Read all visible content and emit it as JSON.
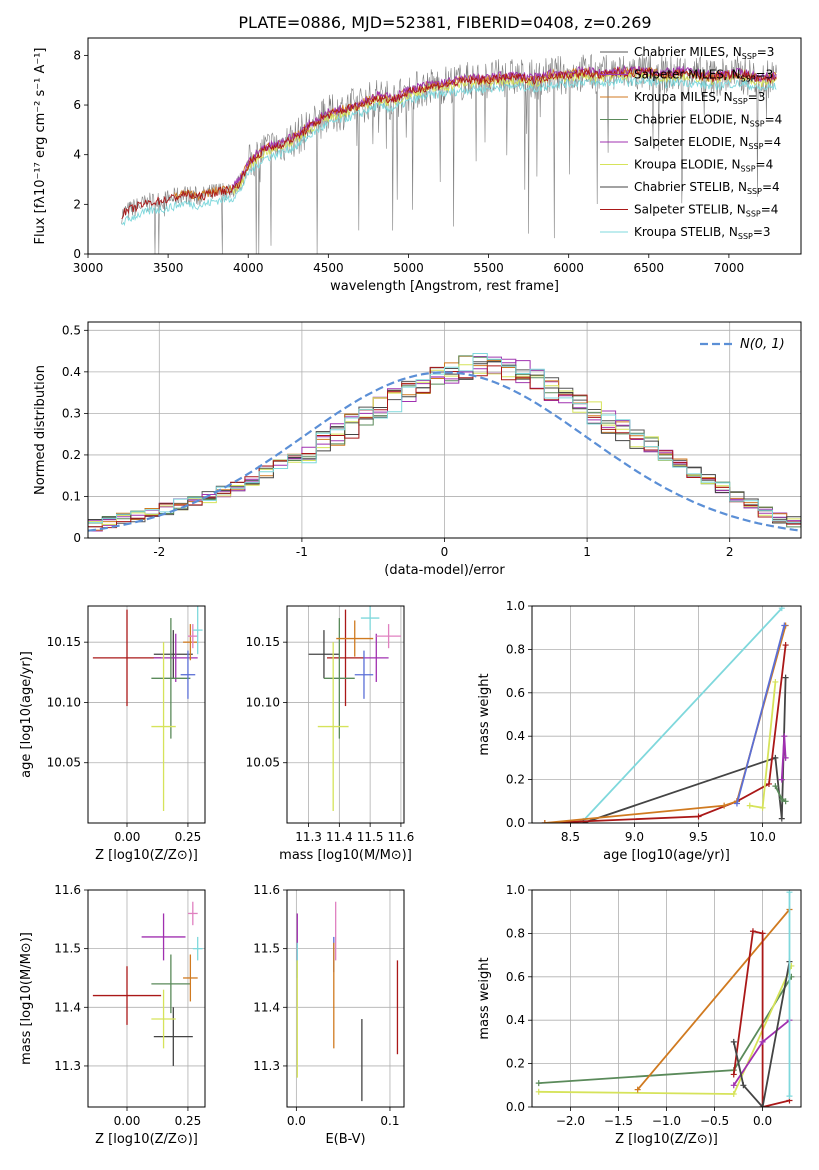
{
  "figure": {
    "title": "PLATE=0886, MJD=52381, FIBERID=0408, z=0.269"
  },
  "colors": {
    "series": [
      "#555555",
      "#a13ab0",
      "#d07a20",
      "#5a8a5a",
      "#a030b0",
      "#d6e35a",
      "#444444",
      "#aa1818",
      "#7fd8dc"
    ],
    "spectrum_data": "#808080",
    "normal_curve": "#5b8fd6",
    "grid": "#b0b0b0"
  },
  "chart_data": [
    {
      "type": "line",
      "id": "spectrum",
      "title": "PLATE=0886, MJD=52381, FIBERID=0408, z=0.269",
      "xlabel": "wavelength [Angstrom, rest frame]",
      "ylabel": "Flux [fλ10⁻¹⁷ erg cm⁻² s⁻¹ A⁻¹]",
      "xlim": [
        3000,
        7450
      ],
      "ylim": [
        0,
        8.7
      ],
      "xticks": [
        3000,
        3500,
        4000,
        4500,
        5000,
        5500,
        6000,
        6500,
        7000
      ],
      "yticks": [
        0,
        2,
        4,
        6,
        8
      ],
      "grid": false,
      "legend_position": "top-right",
      "continuum_x": [
        3210,
        3300,
        3400,
        3500,
        3600,
        3700,
        3800,
        3900,
        3950,
        4000,
        4100,
        4200,
        4300,
        4400,
        4500,
        4600,
        4700,
        4800,
        4900,
        5000,
        5100,
        5200,
        5300,
        5400,
        5500,
        5600,
        5700,
        5800,
        5900,
        6000,
        6100,
        6200,
        6300,
        6400,
        6500,
        6600,
        6700,
        6800,
        6900,
        7000,
        7100,
        7200,
        7300
      ],
      "continuum_y": [
        1.6,
        1.9,
        2.1,
        2.2,
        2.4,
        2.3,
        2.5,
        2.6,
        2.9,
        3.6,
        4.2,
        4.4,
        4.7,
        5.2,
        5.6,
        5.8,
        6.0,
        6.3,
        6.2,
        6.5,
        6.7,
        6.8,
        6.9,
        7.0,
        7.0,
        7.1,
        7.1,
        7.0,
        7.2,
        7.2,
        7.3,
        7.2,
        7.3,
        7.3,
        7.3,
        7.2,
        7.3,
        7.2,
        7.1,
        7.2,
        7.2,
        7.0,
        7.1
      ],
      "legend": [
        {
          "label": "Chabrier MILES, NSSP=3",
          "color": "#555555"
        },
        {
          "label": "Salpeter MILES, NSSP=3",
          "color": "#a13ab0"
        },
        {
          "label": "Kroupa MILES, NSSP=3",
          "color": "#d07a20"
        },
        {
          "label": "Chabrier ELODIE, NSSP=4",
          "color": "#5a8a5a"
        },
        {
          "label": "Salpeter ELODIE, NSSP=4",
          "color": "#a030b0"
        },
        {
          "label": "Kroupa ELODIE, NSSP=4",
          "color": "#d6e35a"
        },
        {
          "label": "Chabrier STELIB, NSSP=4",
          "color": "#444444"
        },
        {
          "label": "Salpeter STELIB, NSSP=4",
          "color": "#aa1818"
        },
        {
          "label": "Kroupa STELIB, NSSP=3",
          "color": "#7fd8dc"
        }
      ]
    },
    {
      "type": "histogram",
      "id": "residuals",
      "xlabel": "(data-model)/error",
      "ylabel": "Normed distribution",
      "xlim": [
        -2.5,
        2.5
      ],
      "ylim": [
        0,
        0.52
      ],
      "xticks": [
        -2,
        -1,
        0,
        1,
        2
      ],
      "yticks": [
        0.0,
        0.1,
        0.2,
        0.3,
        0.4,
        0.5
      ],
      "grid": true,
      "legend_position": "top-right",
      "legend": [
        {
          "label": "N(0, 1)",
          "color": "#5b8fd6",
          "style": "dashed"
        }
      ],
      "bin_width": 0.1,
      "bin_start": -2.5,
      "density": [
        0.03,
        0.04,
        0.05,
        0.05,
        0.06,
        0.07,
        0.08,
        0.09,
        0.1,
        0.11,
        0.12,
        0.14,
        0.16,
        0.18,
        0.19,
        0.21,
        0.23,
        0.25,
        0.27,
        0.29,
        0.31,
        0.33,
        0.35,
        0.37,
        0.39,
        0.4,
        0.41,
        0.42,
        0.42,
        0.41,
        0.4,
        0.38,
        0.36,
        0.34,
        0.32,
        0.3,
        0.28,
        0.26,
        0.24,
        0.22,
        0.2,
        0.18,
        0.16,
        0.14,
        0.12,
        0.1,
        0.08,
        0.06,
        0.05,
        0.04
      ]
    },
    {
      "type": "errorbar",
      "id": "age-vs-Z",
      "xlabel": "Z [log10(Z/Z⊙)]",
      "ylabel": "age [log10(age/yr)]",
      "xlim": [
        -0.16,
        0.32
      ],
      "ylim": [
        10.0,
        10.18
      ],
      "xticks": [
        0.0,
        0.25
      ],
      "xtick_labels": [
        "0.00",
        "0.25"
      ],
      "yticks": [
        10.05,
        10.1,
        10.15
      ],
      "yticks_labels": [
        "10.05",
        "10.10",
        "10.15"
      ],
      "grid": true,
      "points": [
        {
          "x": 0.0,
          "y": 10.137,
          "xerr": 0.14,
          "yerr": 0.04,
          "color": "#aa1818"
        },
        {
          "x": 0.19,
          "y": 10.14,
          "xerr": 0.08,
          "yerr": 0.02,
          "color": "#444444"
        },
        {
          "x": 0.2,
          "y": 10.137,
          "xerr": 0.09,
          "yerr": 0.02,
          "color": "#a030b0"
        },
        {
          "x": 0.18,
          "y": 10.12,
          "xerr": 0.08,
          "yerr": 0.05,
          "color": "#5a8a5a"
        },
        {
          "x": 0.15,
          "y": 10.08,
          "xerr": 0.05,
          "yerr": 0.07,
          "color": "#d6e35a"
        },
        {
          "x": 0.26,
          "y": 10.15,
          "xerr": 0.03,
          "yerr": 0.015,
          "color": "#d07a20"
        },
        {
          "x": 0.27,
          "y": 10.155,
          "xerr": 0.02,
          "yerr": 0.01,
          "color": "#e080c0"
        },
        {
          "x": 0.29,
          "y": 10.16,
          "xerr": 0.02,
          "yerr": 0.02,
          "color": "#7fd8dc"
        },
        {
          "x": 0.25,
          "y": 10.123,
          "xerr": 0.03,
          "yerr": 0.02,
          "color": "#5b6fd6"
        }
      ]
    },
    {
      "type": "errorbar",
      "id": "age-vs-mass",
      "xlabel": "mass [log10(M/M⊙)]",
      "ylabel": "",
      "xlim": [
        11.23,
        11.61
      ],
      "ylim": [
        10.0,
        10.18
      ],
      "xticks": [
        11.3,
        11.4,
        11.5,
        11.6
      ],
      "xticks_labels": [
        "11.3",
        "11.4",
        "11.5",
        "11.6"
      ],
      "yticks": [
        10.05,
        10.1,
        10.15
      ],
      "yticks_labels": [
        "10.05",
        "10.10",
        "10.15"
      ],
      "grid": true,
      "points": [
        {
          "x": 11.42,
          "y": 10.137,
          "xerr": 0.06,
          "yerr": 0.04,
          "color": "#aa1818"
        },
        {
          "x": 11.35,
          "y": 10.14,
          "xerr": 0.05,
          "yerr": 0.02,
          "color": "#444444"
        },
        {
          "x": 11.52,
          "y": 10.137,
          "xerr": 0.04,
          "yerr": 0.02,
          "color": "#a030b0"
        },
        {
          "x": 11.4,
          "y": 10.12,
          "xerr": 0.05,
          "yerr": 0.05,
          "color": "#5a8a5a"
        },
        {
          "x": 11.38,
          "y": 10.08,
          "xerr": 0.05,
          "yerr": 0.07,
          "color": "#d6e35a"
        },
        {
          "x": 11.45,
          "y": 10.153,
          "xerr": 0.06,
          "yerr": 0.015,
          "color": "#d07a20"
        },
        {
          "x": 11.56,
          "y": 10.155,
          "xerr": 0.04,
          "yerr": 0.01,
          "color": "#e080c0"
        },
        {
          "x": 11.5,
          "y": 10.17,
          "xerr": 0.03,
          "yerr": 0.01,
          "color": "#7fd8dc"
        },
        {
          "x": 11.48,
          "y": 10.123,
          "xerr": 0.03,
          "yerr": 0.02,
          "color": "#5b6fd6"
        }
      ]
    },
    {
      "type": "line",
      "id": "weight-vs-age",
      "xlabel": "age  [log10(age/yr)]",
      "ylabel": "mass weight",
      "xlim": [
        8.2,
        10.3
      ],
      "ylim": [
        0,
        1.0
      ],
      "xticks": [
        8.5,
        9.0,
        9.5,
        10.0
      ],
      "xticks_labels": [
        "8.5",
        "9.0",
        "9.5",
        "10.0"
      ],
      "yticks": [
        0.0,
        0.2,
        0.4,
        0.6,
        0.8,
        1.0
      ],
      "yticks_labels": [
        "0.0",
        "0.2",
        "0.4",
        "0.6",
        "0.8",
        "1.0"
      ],
      "grid": true,
      "series": [
        {
          "color": "#7fd8dc",
          "x": [
            8.6,
            10.15
          ],
          "y": [
            0.01,
            0.99
          ]
        },
        {
          "color": "#444444",
          "x": [
            8.6,
            10.1,
            10.15,
            10.18
          ],
          "y": [
            0.0,
            0.3,
            0.02,
            0.67
          ]
        },
        {
          "color": "#aa1818",
          "x": [
            8.3,
            9.5,
            9.8,
            10.05,
            10.18
          ],
          "y": [
            0.0,
            0.03,
            0.1,
            0.18,
            0.82
          ]
        },
        {
          "color": "#d07a20",
          "x": [
            8.3,
            9.7,
            9.8,
            10.18
          ],
          "y": [
            0.0,
            0.08,
            0.1,
            0.91
          ]
        },
        {
          "color": "#5b6fd6",
          "x": [
            9.8,
            10.17
          ],
          "y": [
            0.09,
            0.91
          ]
        },
        {
          "color": "#d6e35a",
          "x": [
            9.9,
            10.0,
            10.1
          ],
          "y": [
            0.08,
            0.07,
            0.65
          ]
        },
        {
          "color": "#a030b0",
          "x": [
            10.15,
            10.17,
            10.18
          ],
          "y": [
            0.2,
            0.4,
            0.3
          ]
        },
        {
          "color": "#5a8a5a",
          "x": [
            10.1,
            10.15,
            10.18
          ],
          "y": [
            0.17,
            0.11,
            0.1
          ]
        }
      ]
    },
    {
      "type": "errorbar",
      "id": "mass-vs-Z",
      "xlabel": "Z [log10(Z/Z⊙)]",
      "ylabel": "mass [log10(M/M⊙)]",
      "xlim": [
        -0.16,
        0.32
      ],
      "ylim": [
        11.23,
        11.6
      ],
      "xticks": [
        0.0,
        0.25
      ],
      "xtick_labels": [
        "0.00",
        "0.25"
      ],
      "yticks": [
        11.3,
        11.4,
        11.5,
        11.6
      ],
      "yticks_labels": [
        "11.3",
        "11.4",
        "11.5",
        "11.6"
      ],
      "grid": true,
      "points": [
        {
          "x": 0.0,
          "y": 11.42,
          "xerr": 0.14,
          "yerr": 0.05,
          "color": "#aa1818"
        },
        {
          "x": 0.19,
          "y": 11.35,
          "xerr": 0.08,
          "yerr": 0.05,
          "color": "#444444"
        },
        {
          "x": 0.15,
          "y": 11.52,
          "xerr": 0.09,
          "yerr": 0.04,
          "color": "#a030b0"
        },
        {
          "x": 0.18,
          "y": 11.44,
          "xerr": 0.08,
          "yerr": 0.05,
          "color": "#5a8a5a"
        },
        {
          "x": 0.15,
          "y": 11.38,
          "xerr": 0.05,
          "yerr": 0.05,
          "color": "#d6e35a"
        },
        {
          "x": 0.26,
          "y": 11.45,
          "xerr": 0.03,
          "yerr": 0.04,
          "color": "#d07a20"
        },
        {
          "x": 0.27,
          "y": 11.56,
          "xerr": 0.02,
          "yerr": 0.02,
          "color": "#e080c0"
        },
        {
          "x": 0.29,
          "y": 11.5,
          "xerr": 0.02,
          "yerr": 0.02,
          "color": "#7fd8dc"
        }
      ]
    },
    {
      "type": "errorbar",
      "id": "mass-vs-ebv",
      "xlabel": "E(B-V)",
      "ylabel": "",
      "xlim": [
        -0.01,
        0.115
      ],
      "ylim": [
        11.23,
        11.6
      ],
      "xticks": [
        0.0,
        0.1
      ],
      "xticks_labels": [
        "0.0",
        "0.1"
      ],
      "yticks": [
        11.3,
        11.4,
        11.5,
        11.6
      ],
      "yticks_labels": [
        "11.3",
        "11.4",
        "11.5",
        "11.6"
      ],
      "grid": true,
      "points": [
        {
          "x": 0.001,
          "y": 11.52,
          "yerr": 0.04,
          "color": "#a030b0"
        },
        {
          "x": 0.001,
          "y": 11.48,
          "yerr": 0.03,
          "color": "#7fd8dc"
        },
        {
          "x": 0.001,
          "y": 11.38,
          "yerr": 0.1,
          "color": "#d6e35a"
        },
        {
          "x": 0.04,
          "y": 11.49,
          "yerr": 0.03,
          "color": "#5b6fd6"
        },
        {
          "x": 0.04,
          "y": 11.42,
          "yerr": 0.09,
          "color": "#d07a20"
        },
        {
          "x": 0.042,
          "y": 11.53,
          "yerr": 0.05,
          "color": "#e080c0"
        },
        {
          "x": 0.07,
          "y": 11.31,
          "yerr": 0.07,
          "color": "#444444"
        },
        {
          "x": 0.108,
          "y": 11.4,
          "yerr": 0.08,
          "color": "#aa1818"
        }
      ]
    },
    {
      "type": "line",
      "id": "weight-vs-Z",
      "xlabel": "Z [log10(Z/Z⊙)]",
      "ylabel": "mass weight",
      "xlim": [
        -2.4,
        0.4
      ],
      "ylim": [
        0,
        1.0
      ],
      "xticks": [
        -2.0,
        -1.5,
        -1.0,
        -0.5,
        0.0
      ],
      "xticks_labels": [
        "−2.0",
        "−1.5",
        "−1.0",
        "−0.5",
        "0.0"
      ],
      "yticks": [
        0.0,
        0.2,
        0.4,
        0.6,
        0.8,
        1.0
      ],
      "yticks_labels": [
        "0.0",
        "0.2",
        "0.4",
        "0.6",
        "0.8",
        "1.0"
      ],
      "grid": true,
      "series": [
        {
          "color": "#5a8a5a",
          "x": [
            -2.33,
            -0.3,
            0.3
          ],
          "y": [
            0.11,
            0.17,
            0.6
          ]
        },
        {
          "color": "#d6e35a",
          "x": [
            -2.33,
            -0.3,
            0.3
          ],
          "y": [
            0.07,
            0.06,
            0.65
          ]
        },
        {
          "color": "#d07a20",
          "x": [
            -1.3,
            0.28
          ],
          "y": [
            0.08,
            0.91
          ]
        },
        {
          "color": "#aa1818",
          "x": [
            -0.3,
            -0.1,
            0.0,
            0.0,
            0.28
          ],
          "y": [
            0.15,
            0.81,
            0.8,
            0.0,
            0.03
          ]
        },
        {
          "color": "#a030b0",
          "x": [
            -0.3,
            0.0,
            0.28
          ],
          "y": [
            0.1,
            0.3,
            0.4
          ]
        },
        {
          "color": "#444444",
          "x": [
            -0.3,
            -0.2,
            0.0,
            0.28
          ],
          "y": [
            0.3,
            0.1,
            0.0,
            0.67
          ]
        },
        {
          "color": "#7fd8dc",
          "x": [
            0.28,
            0.28
          ],
          "y": [
            0.05,
            0.99
          ]
        }
      ]
    }
  ]
}
